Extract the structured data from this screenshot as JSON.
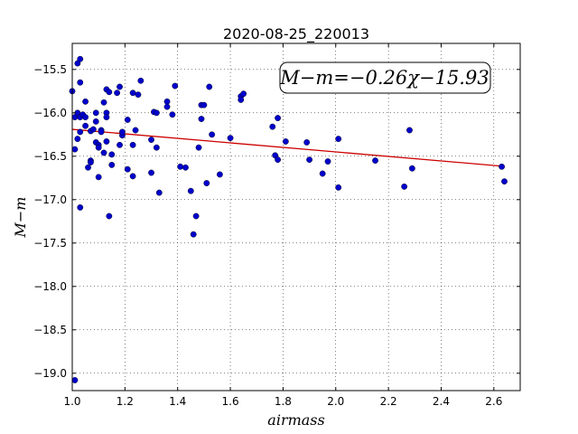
{
  "chart_data": {
    "type": "scatter",
    "title": "2020-08-25_220013",
    "xlabel": "airmass",
    "ylabel": "M−m",
    "annotation": "M−m=−0.26χ−15.93",
    "xlim": [
      1.0,
      2.7
    ],
    "ylim": [
      -19.2,
      -15.2
    ],
    "y_inverted": true,
    "grid": true,
    "x_ticks": [
      1.0,
      1.2,
      1.4,
      1.6,
      1.8,
      2.0,
      2.2,
      2.4,
      2.6
    ],
    "x_tick_labels": [
      "1.0",
      "1.2",
      "1.4",
      "1.6",
      "1.8",
      "2.0",
      "2.2",
      "2.4",
      "2.6"
    ],
    "y_ticks": [
      -15.5,
      -16.0,
      -16.5,
      -17.0,
      -17.5,
      -18.0,
      -18.5,
      -19.0
    ],
    "y_tick_labels": [
      "−15.5",
      "−16.0",
      "−16.5",
      "−17.0",
      "−17.5",
      "−18.0",
      "−18.5",
      "−19.0"
    ],
    "fit": {
      "slope": -0.26,
      "intercept": -15.93,
      "color": "#cc0000"
    },
    "point_color": "#0000cc",
    "points": [
      [
        1.0,
        -15.75
      ],
      [
        1.01,
        -16.05
      ],
      [
        1.01,
        -16.42
      ],
      [
        1.02,
        -15.43
      ],
      [
        1.02,
        -16.3
      ],
      [
        1.02,
        -16.0
      ],
      [
        1.03,
        -15.38
      ],
      [
        1.03,
        -15.65
      ],
      [
        1.03,
        -16.05
      ],
      [
        1.03,
        -16.22
      ],
      [
        1.03,
        -17.09
      ],
      [
        1.04,
        -16.02
      ],
      [
        1.05,
        -16.05
      ],
      [
        1.05,
        -16.15
      ],
      [
        1.05,
        -15.87
      ],
      [
        1.06,
        -16.63
      ],
      [
        1.07,
        -16.21
      ],
      [
        1.07,
        -16.55
      ],
      [
        1.07,
        -16.57
      ],
      [
        1.08,
        -16.19
      ],
      [
        1.09,
        -16.0
      ],
      [
        1.09,
        -16.34
      ],
      [
        1.09,
        -16.1
      ],
      [
        1.1,
        -16.37
      ],
      [
        1.1,
        -16.4
      ],
      [
        1.1,
        -16.74
      ],
      [
        1.11,
        -16.2
      ],
      [
        1.11,
        -16.22
      ],
      [
        1.12,
        -15.88
      ],
      [
        1.12,
        -16.46
      ],
      [
        1.13,
        -16.33
      ],
      [
        1.13,
        -16.0
      ],
      [
        1.13,
        -16.05
      ],
      [
        1.13,
        -15.73
      ],
      [
        1.14,
        -15.76
      ],
      [
        1.14,
        -17.19
      ],
      [
        1.15,
        -16.6
      ],
      [
        1.15,
        -16.48
      ],
      [
        1.17,
        -15.77
      ],
      [
        1.18,
        -16.37
      ],
      [
        1.18,
        -15.7
      ],
      [
        1.19,
        -16.26
      ],
      [
        1.19,
        -16.22
      ],
      [
        1.21,
        -16.08
      ],
      [
        1.21,
        -16.65
      ],
      [
        1.23,
        -15.77
      ],
      [
        1.23,
        -16.37
      ],
      [
        1.23,
        -16.73
      ],
      [
        1.24,
        -16.2
      ],
      [
        1.25,
        -15.79
      ],
      [
        1.26,
        -15.63
      ],
      [
        1.3,
        -16.31
      ],
      [
        1.3,
        -16.69
      ],
      [
        1.31,
        -15.99
      ],
      [
        1.32,
        -16.0
      ],
      [
        1.32,
        -16.4
      ],
      [
        1.33,
        -16.92
      ],
      [
        1.36,
        -15.87
      ],
      [
        1.36,
        -15.93
      ],
      [
        1.38,
        -16.02
      ],
      [
        1.39,
        -15.69
      ],
      [
        1.41,
        -16.62
      ],
      [
        1.43,
        -16.63
      ],
      [
        1.45,
        -16.9
      ],
      [
        1.46,
        -17.4
      ],
      [
        1.47,
        -17.19
      ],
      [
        1.48,
        -16.4
      ],
      [
        1.49,
        -15.91
      ],
      [
        1.49,
        -16.07
      ],
      [
        1.5,
        -15.91
      ],
      [
        1.51,
        -16.81
      ],
      [
        1.52,
        -15.7
      ],
      [
        1.53,
        -16.25
      ],
      [
        1.56,
        -16.71
      ],
      [
        1.6,
        -16.29
      ],
      [
        1.64,
        -15.81
      ],
      [
        1.64,
        -15.85
      ],
      [
        1.65,
        -15.78
      ],
      [
        1.76,
        -16.16
      ],
      [
        1.77,
        -16.49
      ],
      [
        1.78,
        -16.54
      ],
      [
        1.78,
        -16.06
      ],
      [
        1.81,
        -16.33
      ],
      [
        1.89,
        -16.34
      ],
      [
        1.9,
        -16.54
      ],
      [
        1.95,
        -16.7
      ],
      [
        1.97,
        -16.56
      ],
      [
        2.01,
        -16.86
      ],
      [
        2.01,
        -16.3
      ],
      [
        2.15,
        -16.55
      ],
      [
        2.26,
        -16.85
      ],
      [
        2.28,
        -16.2
      ],
      [
        2.29,
        -16.64
      ],
      [
        2.63,
        -16.62
      ],
      [
        2.64,
        -16.79
      ],
      [
        1.01,
        -19.08
      ]
    ]
  }
}
